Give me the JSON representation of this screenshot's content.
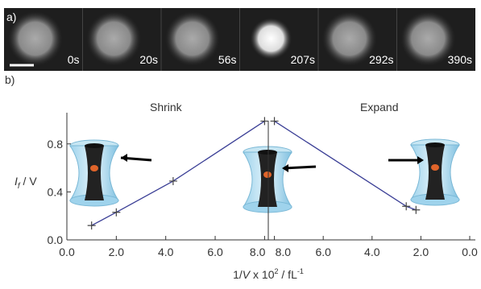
{
  "panel_a": {
    "label": "a)",
    "frames": [
      "0s",
      "20s",
      "56s",
      "207s",
      "292s",
      "390s"
    ]
  },
  "chart_data": {
    "type": "line",
    "panel_label": "b)",
    "annotations": [
      "Shrink",
      "Expand"
    ],
    "y_label": {
      "main": "I",
      "sub": "f",
      "rest": " / V"
    },
    "x_label": {
      "main": "1/",
      "var": "V",
      "mid": " x 10",
      "sup1": "2",
      "unit": " / fL",
      "sup2": "-1"
    },
    "ylim": [
      0,
      1.06
    ],
    "yticks": [
      {
        "value": 0,
        "label": "0.0"
      },
      {
        "value": 0.4,
        "label": "0.4"
      },
      {
        "value": 0.8,
        "label": "0.8"
      }
    ],
    "x_axes": {
      "left": {
        "xlim": [
          0,
          8.15
        ],
        "xticks": [
          {
            "value": 0,
            "label": "0.0"
          },
          {
            "value": 2,
            "label": "2.0"
          },
          {
            "value": 4,
            "label": "4.0"
          },
          {
            "value": 6,
            "label": "6.0"
          },
          {
            "value": 8,
            "label": "8.0"
          }
        ]
      },
      "right": {
        "xlim": [
          8.25,
          0
        ],
        "xticks": [
          {
            "value": 8,
            "label": "8.0"
          },
          {
            "value": 6,
            "label": "6.0"
          },
          {
            "value": 4,
            "label": "4.0"
          },
          {
            "value": 2,
            "label": "2.0"
          },
          {
            "value": 0,
            "label": "0.0"
          }
        ]
      }
    },
    "series": [
      {
        "color": "#3b3f96",
        "xaxis": "left",
        "x": [
          1.0,
          2.0,
          4.3,
          8.0
        ],
        "values": [
          0.12,
          0.23,
          0.49,
          0.99
        ]
      },
      {
        "color": "#3b3f96",
        "xaxis": "right",
        "x": [
          8.0,
          2.6,
          2.2
        ],
        "values": [
          0.99,
          0.28,
          0.25
        ]
      }
    ]
  }
}
